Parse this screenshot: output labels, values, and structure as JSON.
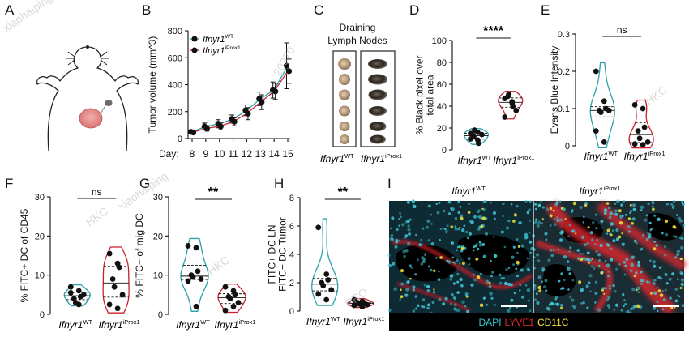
{
  "figure": {
    "panel_labels": [
      "A",
      "B",
      "C",
      "D",
      "E",
      "F",
      "G",
      "H",
      "I"
    ],
    "watermarks": [
      "xiaohaiping",
      "HKC",
      "HKC",
      "HKC",
      "PRO",
      "xiaohaiping",
      "20370"
    ],
    "colors": {
      "wt": "#2aa1a9",
      "iprox": "#c8202f",
      "dot": "#111111"
    },
    "genotypes": {
      "base": "Ifnyr1",
      "wt_sup": "WT",
      "ko_sup": "iProx1"
    }
  },
  "chart_data": [
    {
      "id": "B",
      "type": "line",
      "ylabel": "Tumor volume (mm^3)",
      "xprefix": "Day:",
      "x": [
        8,
        9,
        10,
        11,
        12,
        13,
        14,
        15
      ],
      "ylim": [
        0,
        800
      ],
      "yticks": [
        0,
        200,
        400,
        600,
        800
      ],
      "legend": "top-left",
      "series": [
        {
          "name": "WT",
          "values": [
            50,
            90,
            110,
            145,
            210,
            295,
            360,
            540
          ],
          "err": [
            10,
            25,
            30,
            30,
            40,
            50,
            60,
            170
          ]
        },
        {
          "name": "iProx1",
          "values": [
            45,
            75,
            90,
            125,
            185,
            270,
            350,
            500
          ],
          "err": [
            10,
            20,
            25,
            30,
            45,
            55,
            60,
            90
          ]
        }
      ]
    },
    {
      "id": "D",
      "type": "violin",
      "ylabel_lines": [
        "% Black pixel over",
        "total area"
      ],
      "ylim": [
        0,
        100
      ],
      "yticks": [
        0,
        20,
        40,
        60,
        80,
        100
      ],
      "significance": "****",
      "groups": [
        {
          "name": "WT",
          "values": [
            15,
            9,
            6,
            12,
            18,
            14,
            10,
            16
          ]
        },
        {
          "name": "iProx1",
          "values": [
            47,
            44,
            40,
            49,
            51,
            36,
            30,
            43
          ]
        }
      ]
    },
    {
      "id": "E",
      "type": "violin",
      "ylabel_lines": [
        "Evans Blue Intensity"
      ],
      "ylim": [
        0,
        0.3
      ],
      "yticks": [
        0.0,
        0.1,
        0.2,
        0.3
      ],
      "significance": "ns",
      "groups": [
        {
          "name": "WT",
          "values": [
            0.2,
            0.12,
            0.1,
            0.095,
            0.09,
            0.095,
            0.04,
            0.01
          ]
        },
        {
          "name": "iProx1",
          "values": [
            0.11,
            0.1,
            0.05,
            0.04,
            0.02,
            0.01,
            0.005,
            0.003
          ]
        }
      ]
    },
    {
      "id": "F",
      "type": "violin",
      "ylabel_lines": [
        "% FITC+ DC of CD45"
      ],
      "ylim": [
        0,
        30
      ],
      "yticks": [
        0,
        10,
        20,
        30
      ],
      "significance": "ns",
      "groups": [
        {
          "name": "WT",
          "values": [
            7,
            6,
            4.5,
            4,
            3,
            5,
            5.5,
            2.5
          ]
        },
        {
          "name": "iProx1",
          "values": [
            15.5,
            13,
            12,
            9,
            7,
            5,
            2.5,
            1.5
          ]
        }
      ]
    },
    {
      "id": "G",
      "type": "violin",
      "ylabel_lines": [
        "% FITC+ of mig DC"
      ],
      "ylim": [
        0,
        30
      ],
      "yticks": [
        0,
        10,
        20,
        30
      ],
      "significance": "**",
      "groups": [
        {
          "name": "WT",
          "values": [
            17.5,
            17,
            11,
            10,
            9.5,
            9,
            8.5,
            2
          ]
        },
        {
          "name": "iProx1",
          "values": [
            7,
            6,
            5,
            4.5,
            4,
            3,
            1,
            2
          ]
        }
      ]
    },
    {
      "id": "H",
      "type": "violin",
      "ylabel_lines": [
        "FITC+ DC LN",
        "FITC+ DC Tumor"
      ],
      "ylim": [
        0,
        8
      ],
      "yticks": [
        0,
        2,
        4,
        6,
        8
      ],
      "significance": "**",
      "groups": [
        {
          "name": "WT",
          "values": [
            5.9,
            2.6,
            2.2,
            2.0,
            1.8,
            1.5,
            1.2,
            0.8
          ]
        },
        {
          "name": "iProx1",
          "values": [
            0.8,
            0.7,
            0.6,
            0.6,
            0.5,
            0.45,
            0.4,
            0.3
          ]
        }
      ]
    }
  ],
  "panel_C": {
    "title_lines": [
      "Draining",
      "Lymph Nodes"
    ]
  },
  "panel_I": {
    "legend": [
      {
        "text": "DAPI",
        "color": "#35c6d6"
      },
      {
        "text": "LYVE1",
        "color": "#e02828"
      },
      {
        "text": "CD11C",
        "color": "#f2e43a"
      }
    ]
  }
}
